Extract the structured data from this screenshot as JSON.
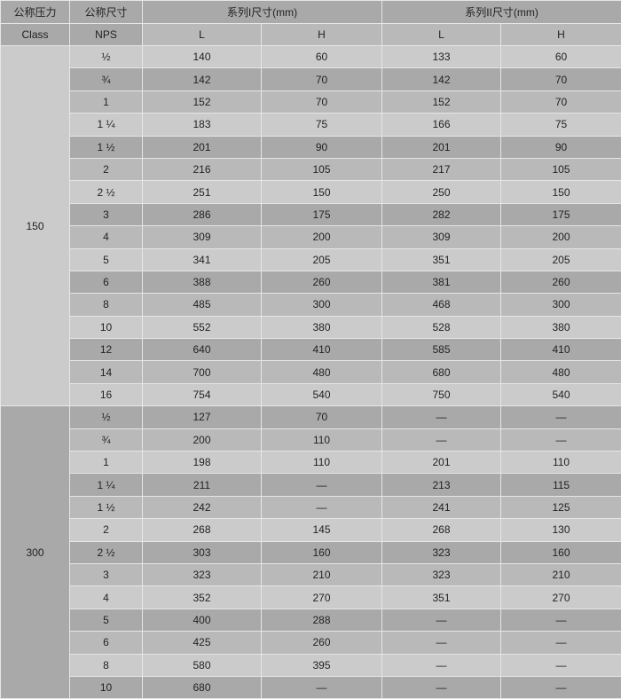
{
  "header": {
    "class_cn": "公称压力",
    "class_en": "Class",
    "nps_cn": "公称尺寸",
    "nps_en": "NPS",
    "series1": "系列I尺寸(mm)",
    "series2": "系列II尺寸(mm)",
    "sub": [
      "L",
      "H",
      "L",
      "H"
    ]
  },
  "colors": {
    "light": "#cbcbcb",
    "mid": "#b9b9b9",
    "dark": "#a9a9a9",
    "border": "#e6e6e6"
  },
  "groups": [
    {
      "class": "150",
      "rows": [
        [
          "½",
          "140",
          "60",
          "133",
          "60"
        ],
        [
          "¾",
          "142",
          "70",
          "142",
          "70"
        ],
        [
          "1",
          "152",
          "70",
          "152",
          "70"
        ],
        [
          "1 ¼",
          "183",
          "75",
          "166",
          "75"
        ],
        [
          "1 ½",
          "201",
          "90",
          "201",
          "90"
        ],
        [
          "2",
          "216",
          "105",
          "217",
          "105"
        ],
        [
          "2 ½",
          "251",
          "150",
          "250",
          "150"
        ],
        [
          "3",
          "286",
          "175",
          "282",
          "175"
        ],
        [
          "4",
          "309",
          "200",
          "309",
          "200"
        ],
        [
          "5",
          "341",
          "205",
          "351",
          "205"
        ],
        [
          "6",
          "388",
          "260",
          "381",
          "260"
        ],
        [
          "8",
          "485",
          "300",
          "468",
          "300"
        ],
        [
          "10",
          "552",
          "380",
          "528",
          "380"
        ],
        [
          "12",
          "640",
          "410",
          "585",
          "410"
        ],
        [
          "14",
          "700",
          "480",
          "680",
          "480"
        ],
        [
          "16",
          "754",
          "540",
          "750",
          "540"
        ]
      ]
    },
    {
      "class": "300",
      "rows": [
        [
          "½",
          "127",
          "70",
          "—",
          "—"
        ],
        [
          "¾",
          "200",
          "110",
          "—",
          "—"
        ],
        [
          "1",
          "198",
          "110",
          "201",
          "110"
        ],
        [
          "1 ¼",
          "211",
          "—",
          "213",
          "115"
        ],
        [
          "1 ½",
          "242",
          "—",
          "241",
          "125"
        ],
        [
          "2",
          "268",
          "145",
          "268",
          "130"
        ],
        [
          "2 ½",
          "303",
          "160",
          "323",
          "160"
        ],
        [
          "3",
          "323",
          "210",
          "323",
          "210"
        ],
        [
          "4",
          "352",
          "270",
          "351",
          "270"
        ],
        [
          "5",
          "400",
          "288",
          "—",
          "—"
        ],
        [
          "6",
          "425",
          "260",
          "—",
          "—"
        ],
        [
          "8",
          "580",
          "395",
          "—",
          "—"
        ],
        [
          "10",
          "680",
          "—",
          "—",
          "—"
        ]
      ]
    }
  ]
}
